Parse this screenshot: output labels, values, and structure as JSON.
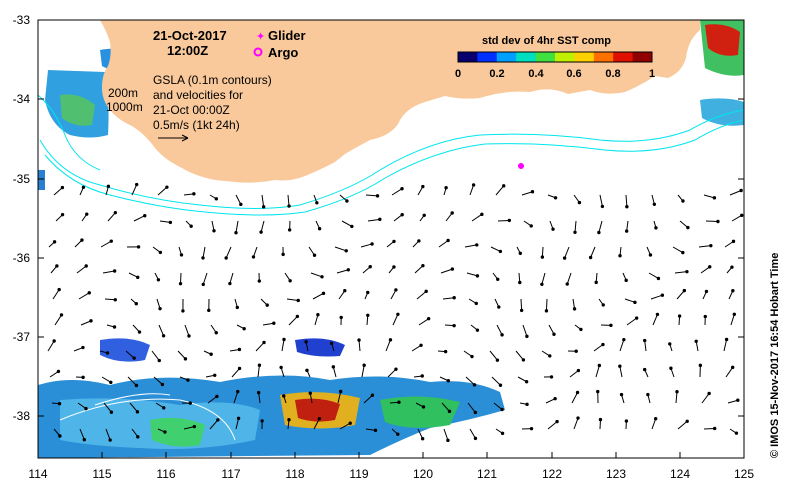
{
  "header": {
    "date": "21-Oct-2017",
    "time": "12:00Z"
  },
  "legend": {
    "glider_label": "Glider",
    "argo_label": "Argo",
    "glider_color": "#ff00ff",
    "argo_color": "#ff00ff"
  },
  "contours": {
    "depth_200": "200m",
    "depth_1000": "1000m",
    "contour_color": "#00e5ee"
  },
  "gsla": {
    "line1": "GSLA (0.1m contours)",
    "line2": "and velocities for",
    "line3": "21-Oct 00:00Z",
    "line4": "0.5m/s (1kt 24h)"
  },
  "colorbar": {
    "title": "std dev of 4hr SST comp",
    "ticks": [
      "0",
      "0.2",
      "0.4",
      "0.6",
      "0.8",
      "1"
    ],
    "colors": [
      "#08006e",
      "#0030ff",
      "#00a0ff",
      "#00e0c0",
      "#40e040",
      "#c0f000",
      "#ffd000",
      "#ff7000",
      "#e01000",
      "#900000"
    ]
  },
  "credit": "© IMOS 15-Nov-2017 16:54 Hobart Time",
  "axes": {
    "x_ticks": [
      "114",
      "115",
      "116",
      "117",
      "118",
      "119",
      "120",
      "121",
      "122",
      "123",
      "124",
      "125"
    ],
    "y_ticks": [
      "-33",
      "-34",
      "-35",
      "-36",
      "-37",
      "-38"
    ],
    "xlim": [
      114,
      125
    ],
    "ylim": [
      -38.6,
      -33
    ]
  },
  "land_color": "#f9c99b",
  "argo_float": {
    "lon": 121.5,
    "lat": -34.85
  }
}
